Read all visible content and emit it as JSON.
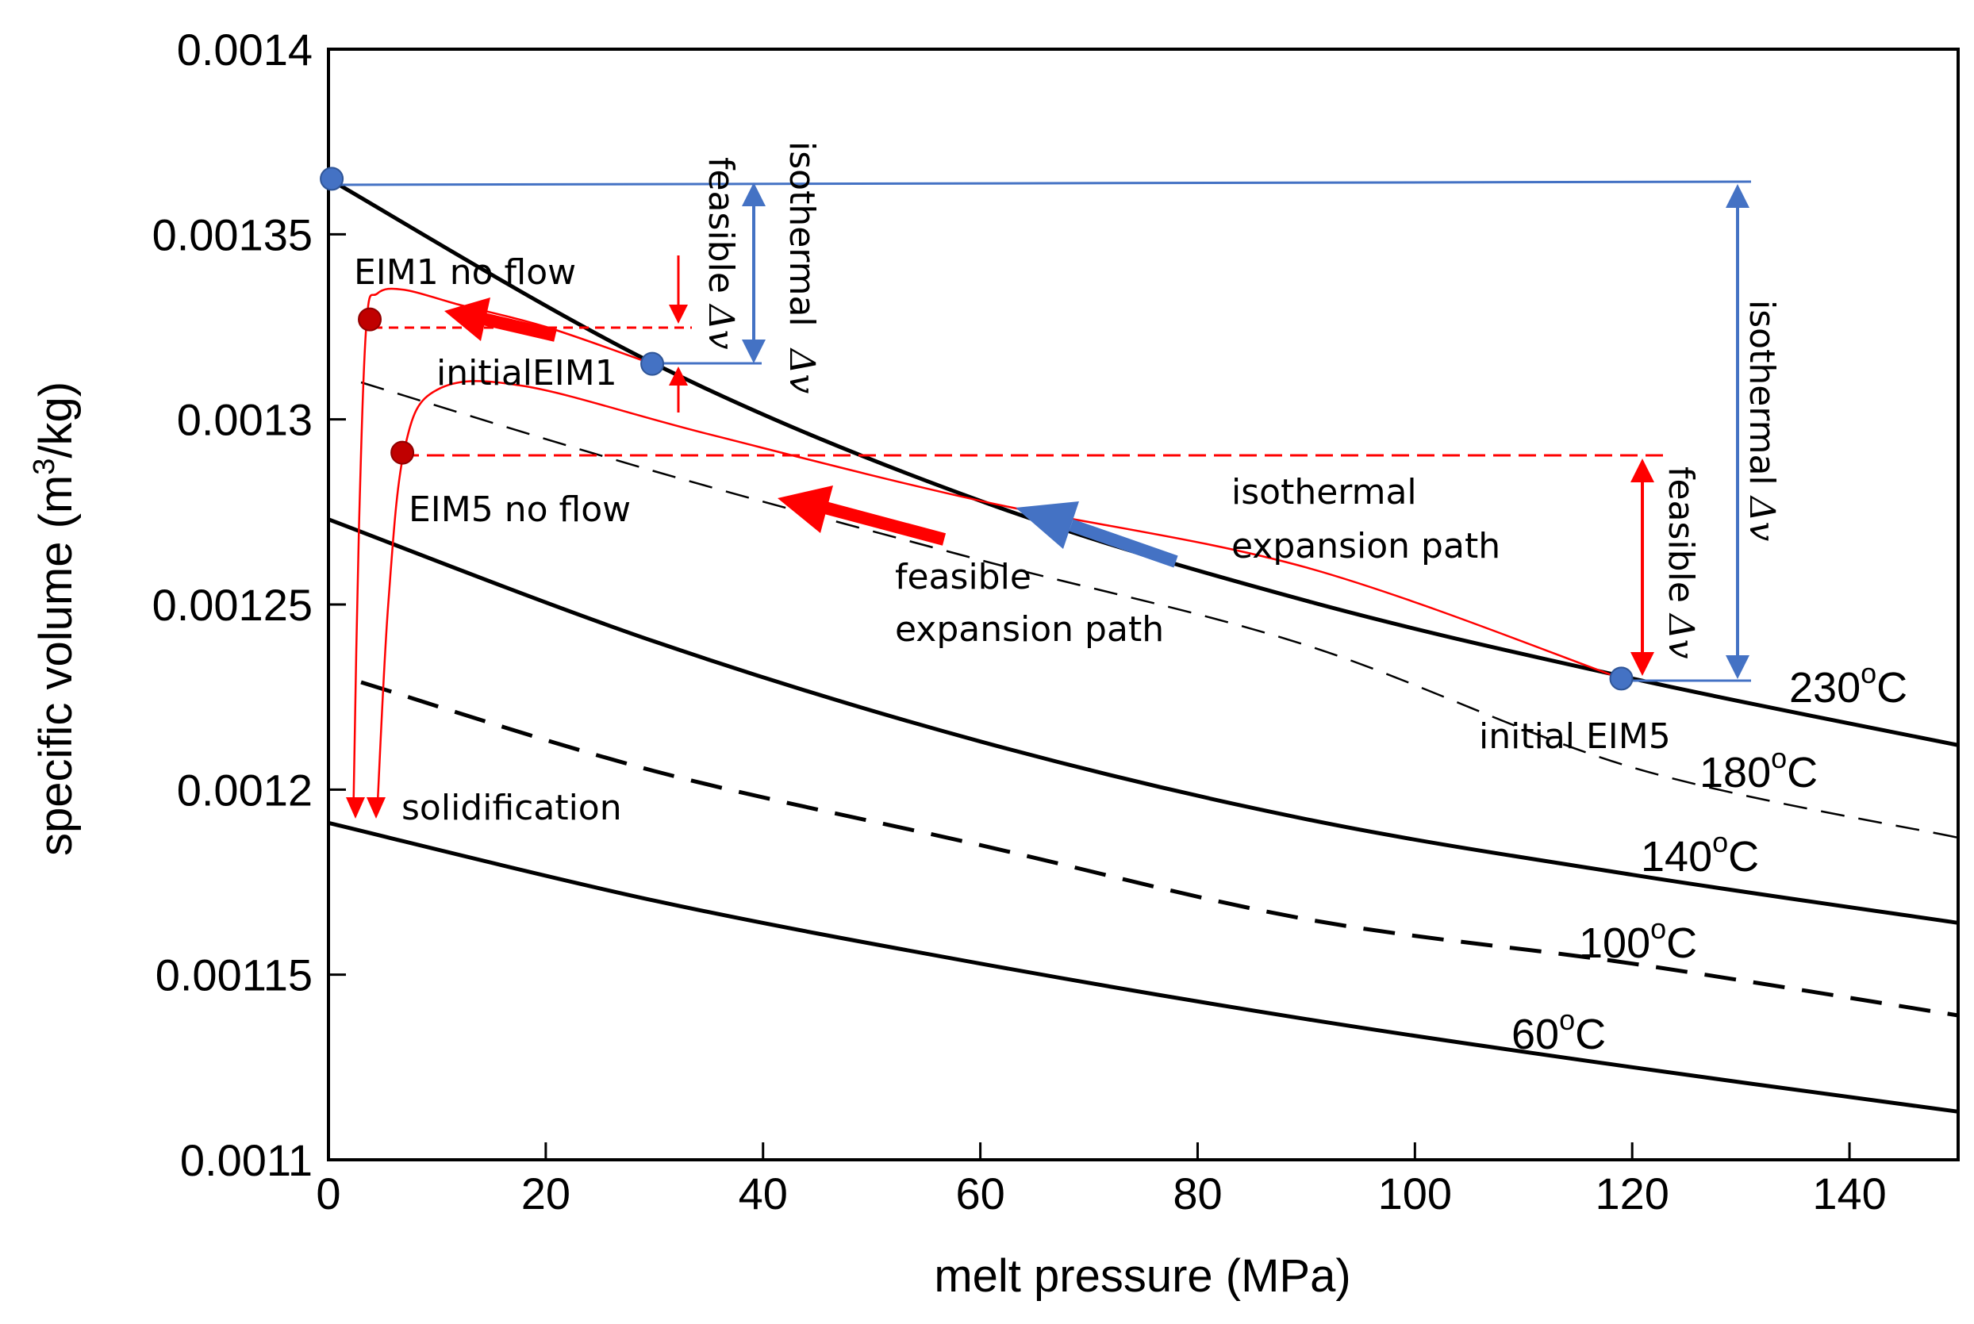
{
  "chart_data": {
    "type": "line",
    "xlabel": "melt pressure (MPa)",
    "ylabel_main": "specific volume (m",
    "ylabel_sup": "3",
    "ylabel_tail": "/kg)",
    "xlim": [
      0,
      150
    ],
    "ylim": [
      0.0011,
      0.0014
    ],
    "x_ticks": [
      0,
      20,
      40,
      60,
      80,
      100,
      120,
      140
    ],
    "x_tick_labels": [
      "0",
      "20",
      "40",
      "60",
      "80",
      "100",
      "120",
      "140"
    ],
    "y_ticks": [
      0.0011,
      0.00115,
      0.0012,
      0.00125,
      0.0013,
      0.00135,
      0.0014
    ],
    "y_tick_labels": [
      "0.0011",
      "0.00115",
      "0.0012",
      "0.00125",
      "0.0013",
      "0.00135",
      "0.0014"
    ],
    "isotherms": [
      {
        "name": "230",
        "unit_sup": "o",
        "unit": "C",
        "style": "solid-thick",
        "x": [
          0,
          30,
          60,
          90,
          120,
          150
        ],
        "y": [
          0.001365,
          0.001315,
          0.001278,
          0.001251,
          0.00123,
          0.001212
        ]
      },
      {
        "name": "180",
        "unit_sup": "o",
        "unit": "C",
        "style": "dash-long",
        "x": [
          3,
          30,
          60,
          90,
          120,
          150
        ],
        "y": [
          0.00131,
          0.001286,
          0.001262,
          0.001239,
          0.001206,
          0.001187
        ]
      },
      {
        "name": "140",
        "unit_sup": "o",
        "unit": "C",
        "style": "solid-thick",
        "x": [
          0,
          30,
          60,
          90,
          120,
          150
        ],
        "y": [
          0.001273,
          0.00124,
          0.001213,
          0.001192,
          0.001177,
          0.001164
        ]
      },
      {
        "name": "100",
        "unit_sup": "o",
        "unit": "C",
        "style": "dash-thick",
        "x": [
          3,
          30,
          60,
          90,
          120,
          150
        ],
        "y": [
          0.001229,
          0.001205,
          0.001185,
          0.001165,
          0.001153,
          0.001139
        ]
      },
      {
        "name": "60",
        "unit_sup": "o",
        "unit": "C",
        "style": "solid-thick",
        "x": [
          0,
          30,
          60,
          90,
          120,
          150
        ],
        "y": [
          0.001191,
          0.00117,
          0.001153,
          0.001138,
          0.001125,
          0.001113
        ]
      }
    ],
    "points": [
      {
        "name": "start",
        "x": 0.3,
        "y": 0.001365,
        "color": "#4472c4"
      },
      {
        "name": "initialEIM1",
        "x": 29.8,
        "y": 0.001315,
        "color": "#4472c4"
      },
      {
        "name": "initial EIM5",
        "x": 119,
        "y": 0.00123,
        "color": "#4472c4"
      },
      {
        "name": "EIM1 no flow",
        "x": 3.8,
        "y": 0.001327,
        "color": "#c00000"
      },
      {
        "name": "EIM5 no flow",
        "x": 6.8,
        "y": 0.001291,
        "color": "#c00000"
      }
    ],
    "paths": [
      {
        "name": "EIM1 feasible path",
        "color": "#ff0000",
        "x": [
          29.8,
          20,
          12,
          7,
          4.5,
          3.5,
          2.8,
          2.3
        ],
        "y": [
          0.001315,
          0.001325,
          0.001331,
          0.001335,
          0.001334,
          0.001326,
          0.00127,
          0.001195
        ]
      },
      {
        "name": "EIM5 feasible path",
        "color": "#ff0000",
        "x": [
          119,
          90,
          60,
          35,
          18,
          10,
          7,
          5.5,
          4.5
        ],
        "y": [
          0.00123,
          0.00126,
          0.001278,
          0.001296,
          0.001309,
          0.001308,
          0.001292,
          0.00125,
          0.001195
        ]
      }
    ],
    "annotations": {
      "eim1_no_flow": "EIM1 no flow",
      "initial_eim1": "initialEIM1",
      "eim5_no_flow": "EIM5 no flow",
      "initial_eim5": "initial EIM5",
      "solidification": "solidification",
      "feasible_expansion_path_1": "feasible",
      "feasible_expansion_path_2": "expansion path",
      "isothermal_expansion_path_1": "isothermal",
      "isothermal_expansion_path_2": "expansion path",
      "feasible_word": "feasible",
      "isothermal_word": "isothermal",
      "delta": "Δv"
    },
    "colors": {
      "red": "#ff0000",
      "dark_red": "#c00000",
      "blue": "#4472c4",
      "black": "#000000"
    }
  }
}
